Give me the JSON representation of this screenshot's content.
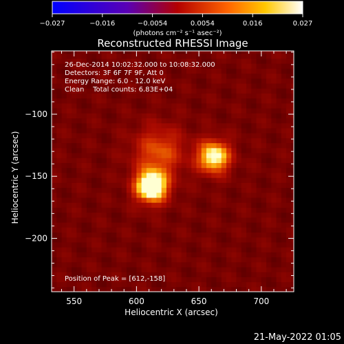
{
  "chart_data": {
    "type": "heatmap",
    "title": "Reconstructed RHESSI Image",
    "xlabel": "Heliocentric X (arcsec)",
    "ylabel": "Heliocentric Y (arcsec)",
    "xlim": [
      532,
      726
    ],
    "ylim": [
      -243,
      -49
    ],
    "xticks": [
      550,
      600,
      650,
      700
    ],
    "yticks": [
      -100,
      -150,
      -200
    ],
    "colorbar": {
      "min": -0.027,
      "max": 0.027,
      "ticks": [
        "−0.027",
        "−0.016",
        "−0.0054",
        "0.0054",
        "0.016",
        "0.027"
      ],
      "unit_label": "(photons cm⁻² s⁻¹ asec⁻²)",
      "colors": [
        "#0000ff",
        "#5a00b4",
        "#b40000",
        "#ff6400",
        "#ffc800",
        "#ffffff"
      ]
    },
    "annotations": [
      "26-Dec-2014 10:02:32.000 to 10:08:32.000",
      "Detectors: 3F 6F 7F 9F, Att 0",
      "Energy Range: 6.0 - 12.0 keV",
      "Clean    Total counts: 6.83E+04"
    ],
    "peak_label": "Position of Peak = [612,-158]",
    "sources": [
      {
        "x": 612,
        "y": -158,
        "peak": 0.027
      },
      {
        "x": 662,
        "y": -134,
        "peak": 0.022
      },
      {
        "x": 618,
        "y": -130,
        "peak": 0.011
      }
    ]
  },
  "timestamp": "21-May-2022 01:05"
}
